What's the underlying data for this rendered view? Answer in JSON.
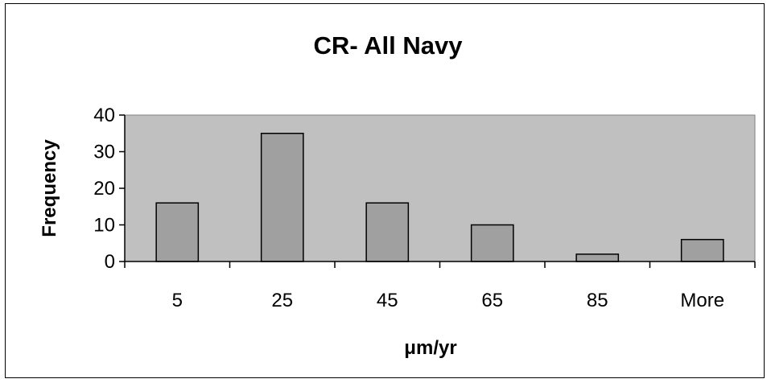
{
  "chart_data": {
    "type": "bar",
    "title": "CR- All Navy",
    "xlabel": "μm/yr",
    "ylabel": "Frequency",
    "categories": [
      "5",
      "25",
      "45",
      "65",
      "85",
      "More"
    ],
    "values": [
      16,
      35,
      16,
      10,
      2,
      6
    ],
    "ylim": [
      0,
      40
    ],
    "yticks": [
      "0",
      "10",
      "20",
      "30",
      "40"
    ],
    "grid": false,
    "legend": "none"
  },
  "colors": {
    "plot_background": "#c0c0c0",
    "bar_fill": "#a0a0a0",
    "bar_stroke": "#000000"
  }
}
